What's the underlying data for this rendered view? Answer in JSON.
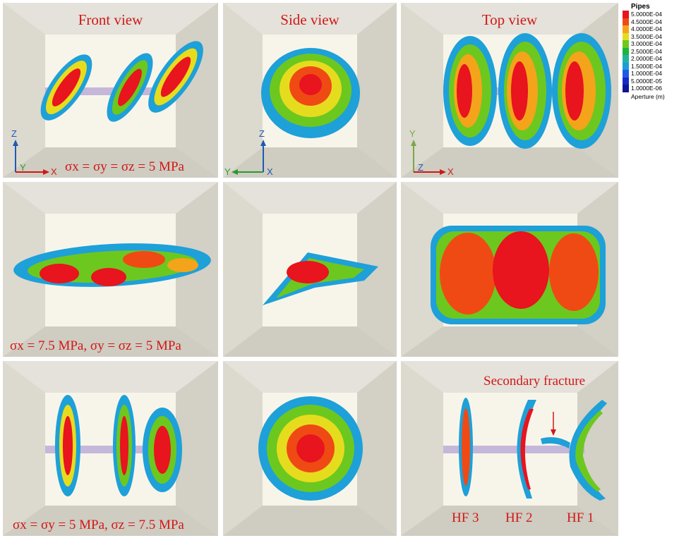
{
  "views": {
    "front": "Front view",
    "side": "Side view",
    "top": "Top view"
  },
  "conditions": {
    "row1": "σx = σy = σz = 5 MPa",
    "row2": "σx = 7.5 MPa, σy = σz = 5 MPa",
    "row3": "σx = σy = 5 MPa, σz = 7.5 MPa"
  },
  "axes": {
    "front": {
      "up": "Z",
      "right": "X",
      "corner": "Y"
    },
    "side": {
      "up": "Z",
      "left": "Y",
      "corner": "X"
    },
    "top": {
      "up": "Y",
      "right": "X",
      "corner": "Z"
    }
  },
  "legend": {
    "title": "Pipes",
    "footer": "Aperture (m)",
    "entries": [
      {
        "label": "5.0000E-04",
        "color": "#e8141e"
      },
      {
        "label": "4.5000E-04",
        "color": "#f04a14"
      },
      {
        "label": "4.0000E-04",
        "color": "#f4a41a"
      },
      {
        "label": "3.5000E-04",
        "color": "#e6dc1e"
      },
      {
        "label": "3.0000E-04",
        "color": "#6cc81e"
      },
      {
        "label": "2.5000E-04",
        "color": "#1eb43c"
      },
      {
        "label": "2.0000E-04",
        "color": "#1eb4a0"
      },
      {
        "label": "1.5000E-04",
        "color": "#1e9cd8"
      },
      {
        "label": "1.0000E-04",
        "color": "#1e5ae6"
      },
      {
        "label": "5.0000E-05",
        "color": "#1428c8"
      },
      {
        "label": "1.0000E-06",
        "color": "#0c1496"
      }
    ]
  },
  "annotations": {
    "secondary": "Secondary fracture",
    "hf3": "HF 3",
    "hf2": "HF 2",
    "hf1": "HF 1"
  }
}
